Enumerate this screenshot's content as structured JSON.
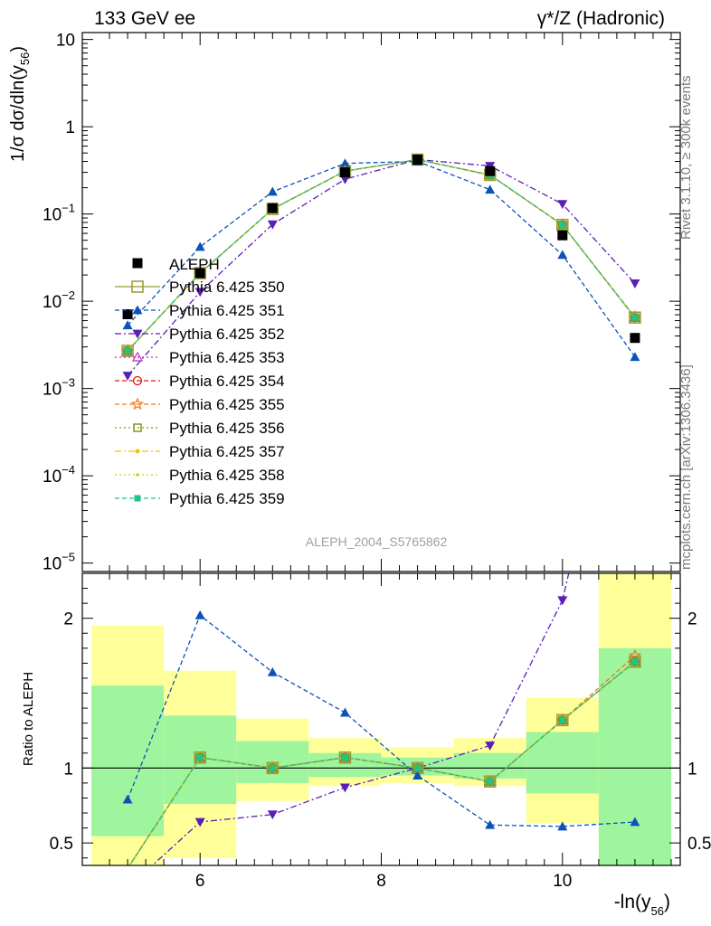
{
  "header": {
    "left": "133 GeV ee",
    "right": "γ*/Z (Hadronic)"
  },
  "side_labels": {
    "top": "Rivet 3.1.10, ≥ 300k events",
    "bottom": "mcplots.cern.ch [arXiv:1306.3436]"
  },
  "watermark": "ALEPH_2004_S5765862",
  "colors": {
    "aleph": "#000000",
    "p350": "#9a9a30",
    "p351": "#0b52bb",
    "p352": "#5b1fb5",
    "p353": "#c427c4",
    "p354": "#e01717",
    "p355": "#ee7a1e",
    "p356": "#7a9a1a",
    "p357": "#e8c21a",
    "p358": "#c8d21a",
    "p359": "#1ec58a",
    "band_inner": "#9ef59e",
    "band_outer": "#ffff9a"
  },
  "chart_data": [
    {
      "type": "line",
      "panel": "main",
      "ylabel": "1/σ dσ/dln(y56)",
      "yscale": "log",
      "ylim": [
        8e-06,
        12
      ],
      "xlim": [
        4.7,
        11.3
      ],
      "yticks": [
        "10−5",
        "10−4",
        "10−3",
        "10−2",
        "10−1",
        "1",
        "10"
      ],
      "x": [
        5.2,
        6.0,
        6.8,
        7.6,
        8.4,
        9.2,
        10.0,
        10.8
      ],
      "aleph": {
        "name": "ALEPH",
        "values": [
          0.0071,
          0.021,
          0.117,
          0.3,
          0.42,
          0.31,
          0.057,
          0.0038
        ]
      },
      "legend_placement": "left",
      "series": [
        {
          "name": "Pythia 6.425 350",
          "key": "p350",
          "marker": "square-open",
          "dash": "solid",
          "values": [
            0.0027,
            0.021,
            0.114,
            0.31,
            0.42,
            0.28,
            0.075,
            0.0065
          ]
        },
        {
          "name": "Pythia 6.425 351",
          "key": "p351",
          "marker": "triangle-up",
          "dash": "dashed",
          "values": [
            0.0053,
            0.042,
            0.18,
            0.38,
            0.4,
            0.19,
            0.034,
            0.0023
          ]
        },
        {
          "name": "Pythia 6.425 352",
          "key": "p352",
          "marker": "triangle-down",
          "dash": "dashdot",
          "values": [
            0.0014,
            0.0128,
            0.076,
            0.25,
            0.42,
            0.355,
            0.13,
            0.016
          ]
        },
        {
          "name": "Pythia 6.425 353",
          "key": "p353",
          "marker": "triangle-open",
          "dash": "dotted",
          "values": [
            0.0027,
            0.021,
            0.114,
            0.31,
            0.42,
            0.28,
            0.075,
            0.0065
          ]
        },
        {
          "name": "Pythia 6.425 354",
          "key": "p354",
          "marker": "circle-open",
          "dash": "dashed",
          "values": [
            0.0027,
            0.021,
            0.114,
            0.31,
            0.42,
            0.28,
            0.075,
            0.0065
          ]
        },
        {
          "name": "Pythia 6.425 355",
          "key": "p355",
          "marker": "star",
          "dash": "dashed",
          "values": [
            0.0027,
            0.021,
            0.114,
            0.31,
            0.42,
            0.28,
            0.075,
            0.0066
          ]
        },
        {
          "name": "Pythia 6.425 356",
          "key": "p356",
          "marker": "square-open-small",
          "dash": "dotted",
          "values": [
            0.0027,
            0.021,
            0.114,
            0.31,
            0.42,
            0.28,
            0.075,
            0.0065
          ]
        },
        {
          "name": "Pythia 6.425 357",
          "key": "p357",
          "marker": "dot-dash",
          "dash": "dashdot",
          "values": [
            0.0027,
            0.021,
            0.114,
            0.31,
            0.42,
            0.28,
            0.075,
            0.0065
          ]
        },
        {
          "name": "Pythia 6.425 358",
          "key": "p358",
          "marker": "dot",
          "dash": "dotted",
          "values": [
            0.0027,
            0.021,
            0.114,
            0.31,
            0.42,
            0.28,
            0.075,
            0.0065
          ]
        },
        {
          "name": "Pythia 6.425 359",
          "key": "p359",
          "marker": "square-filled",
          "dash": "dashed",
          "values": [
            0.0027,
            0.021,
            0.114,
            0.31,
            0.42,
            0.28,
            0.075,
            0.0065
          ]
        }
      ]
    },
    {
      "type": "line",
      "panel": "ratio",
      "ylabel": "Ratio to ALEPH",
      "xlabel": "-ln(y56)",
      "ylim": [
        0.35,
        2.3
      ],
      "xlim": [
        4.7,
        11.3
      ],
      "xticks": [
        6,
        8,
        10
      ],
      "yticks": [
        0.5,
        1,
        2
      ],
      "bands": [
        {
          "xmin": 4.8,
          "xmax": 5.6,
          "inner": [
            0.545,
            1.55
          ],
          "outer": [
            0.3,
            1.95
          ]
        },
        {
          "xmin": 5.6,
          "xmax": 6.4,
          "inner": [
            0.76,
            1.35
          ],
          "outer": [
            0.4,
            1.65
          ]
        },
        {
          "xmin": 6.4,
          "xmax": 7.2,
          "inner": [
            0.9,
            1.18
          ],
          "outer": [
            0.78,
            1.33
          ]
        },
        {
          "xmin": 7.2,
          "xmax": 8.0,
          "inner": [
            0.94,
            1.1
          ],
          "outer": [
            0.88,
            1.2
          ]
        },
        {
          "xmin": 8.0,
          "xmax": 8.8,
          "inner": [
            0.95,
            1.07
          ],
          "outer": [
            0.9,
            1.14
          ]
        },
        {
          "xmin": 8.8,
          "xmax": 9.6,
          "inner": [
            0.93,
            1.1
          ],
          "outer": [
            0.88,
            1.2
          ]
        },
        {
          "xmin": 9.6,
          "xmax": 10.4,
          "inner": [
            0.83,
            1.24
          ],
          "outer": [
            0.63,
            1.47
          ]
        },
        {
          "xmin": 10.4,
          "xmax": 11.2,
          "inner": [
            0.35,
            1.8
          ],
          "outer": [
            0.35,
            2.4
          ]
        }
      ],
      "ratio_series": [
        {
          "key": "p350",
          "values": [
            0.33,
            1.07,
            1.0,
            1.07,
            1.0,
            0.91,
            1.32,
            1.71
          ]
        },
        {
          "key": "p351",
          "values": [
            0.79,
            2.02,
            1.64,
            1.37,
            0.95,
            0.62,
            0.61,
            0.64
          ]
        },
        {
          "key": "p352",
          "values": [
            0.2,
            0.64,
            0.69,
            0.87,
            1.0,
            1.15,
            2.12,
            4.2
          ]
        },
        {
          "key": "p353",
          "values": [
            0.33,
            1.07,
            1.0,
            1.07,
            1.0,
            0.91,
            1.32,
            1.71
          ]
        },
        {
          "key": "p354",
          "values": [
            0.33,
            1.07,
            1.0,
            1.07,
            1.0,
            0.91,
            1.32,
            1.71
          ]
        },
        {
          "key": "p355",
          "values": [
            0.33,
            1.07,
            1.0,
            1.07,
            1.0,
            0.91,
            1.32,
            1.75
          ]
        },
        {
          "key": "p356",
          "values": [
            0.33,
            1.07,
            1.0,
            1.07,
            1.0,
            0.91,
            1.32,
            1.71
          ]
        },
        {
          "key": "p357",
          "values": [
            0.33,
            1.07,
            1.0,
            1.07,
            1.0,
            0.91,
            1.32,
            1.71
          ]
        },
        {
          "key": "p358",
          "values": [
            0.33,
            1.07,
            1.0,
            1.07,
            1.0,
            0.91,
            1.32,
            1.71
          ]
        },
        {
          "key": "p359",
          "values": [
            0.33,
            1.07,
            1.0,
            1.07,
            1.0,
            0.91,
            1.32,
            1.71
          ]
        }
      ]
    }
  ]
}
